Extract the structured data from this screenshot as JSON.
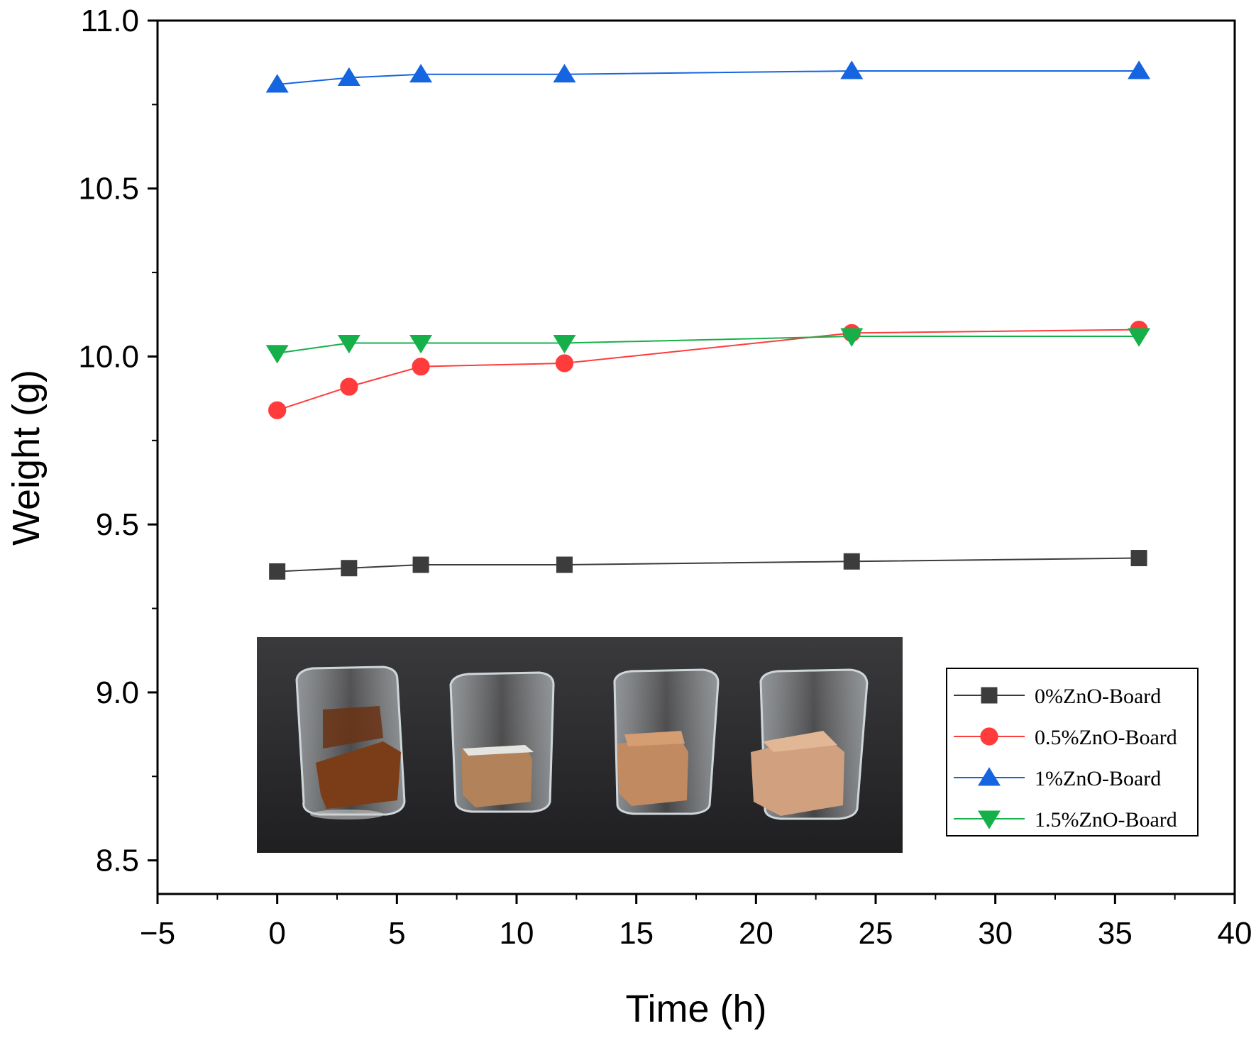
{
  "chart_data": {
    "type": "line",
    "title": "",
    "xlabel": "Time (h)",
    "ylabel": "Weight (g)",
    "xlim": [
      -5,
      40
    ],
    "ylim": [
      8.4,
      11.0
    ],
    "xticks": [
      -5,
      0,
      5,
      10,
      15,
      20,
      25,
      30,
      35,
      40
    ],
    "xtick_labels": [
      "−5",
      "0",
      "5",
      "10",
      "15",
      "20",
      "25",
      "30",
      "35",
      "40"
    ],
    "yticks": [
      8.5,
      9.0,
      9.5,
      10.0,
      10.5,
      11.0
    ],
    "ytick_labels": [
      "8.5",
      "9.0",
      "9.5",
      "10.0",
      "10.5",
      "11.0"
    ],
    "x": [
      0,
      3,
      6,
      12,
      24,
      36
    ],
    "legend_position": "bottom-right",
    "grid": false,
    "series": [
      {
        "name": "0%ZnO-Board",
        "color": "#3c3c3c",
        "marker": "square",
        "values": [
          9.36,
          9.37,
          9.38,
          9.38,
          9.39,
          9.4
        ]
      },
      {
        "name": "0.5%ZnO-Board",
        "color": "#ff3b3b",
        "marker": "circle",
        "values": [
          9.84,
          9.91,
          9.97,
          9.98,
          10.07,
          10.08
        ]
      },
      {
        "name": "1%ZnO-Board",
        "color": "#1565e0",
        "marker": "triangle-up",
        "values": [
          10.81,
          10.83,
          10.84,
          10.84,
          10.85,
          10.85
        ]
      },
      {
        "name": "1.5%ZnO-Board",
        "color": "#16b04a",
        "marker": "triangle-down",
        "values": [
          10.01,
          10.04,
          10.04,
          10.04,
          10.06,
          10.06
        ]
      }
    ]
  },
  "inset_photo": {
    "description": "photo of four glass beakers with soaked boards",
    "background": "#2b2b2d"
  }
}
